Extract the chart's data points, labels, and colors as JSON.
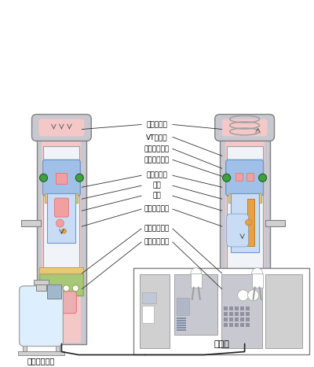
{
  "bg_color": "#ffffff",
  "labels": {
    "pressure_tube": "圧力管本体",
    "vt_camera": "VTカメラ",
    "ultrasonic": "超音波探触子",
    "rotation_top": "回転駆動機構",
    "guide": "ガイド機構",
    "inner_tube": "内筒",
    "outer_tube": "外筒",
    "vertical_drive": "上下駆動装置",
    "rotation_bottom": "回転駆動機構",
    "seal_plug": "シールプラグ",
    "fuel_exchange": "燃料交換装置",
    "control_room": "制御室"
  },
  "pink_light": "#f5c8c8",
  "pink_medium": "#f0a0a0",
  "pink_dark": "#e87878",
  "blue_light": "#c8ddf5",
  "blue_medium": "#a0c0e8",
  "blue_dark": "#7098c8",
  "green_dot": "#40a040",
  "yellow_tan": "#e8c878",
  "gray_light": "#d0d0d0",
  "gray_medium": "#a0a0a0",
  "gray_dark": "#808080",
  "gray_case": "#c8c8d0",
  "white_tube": "#f0f4f8",
  "green_base": "#a8c878",
  "green_base_dark": "#88a858",
  "orange_accent": "#e8a040",
  "pink_plug": "#e8b0b0",
  "text_color": "#000000"
}
